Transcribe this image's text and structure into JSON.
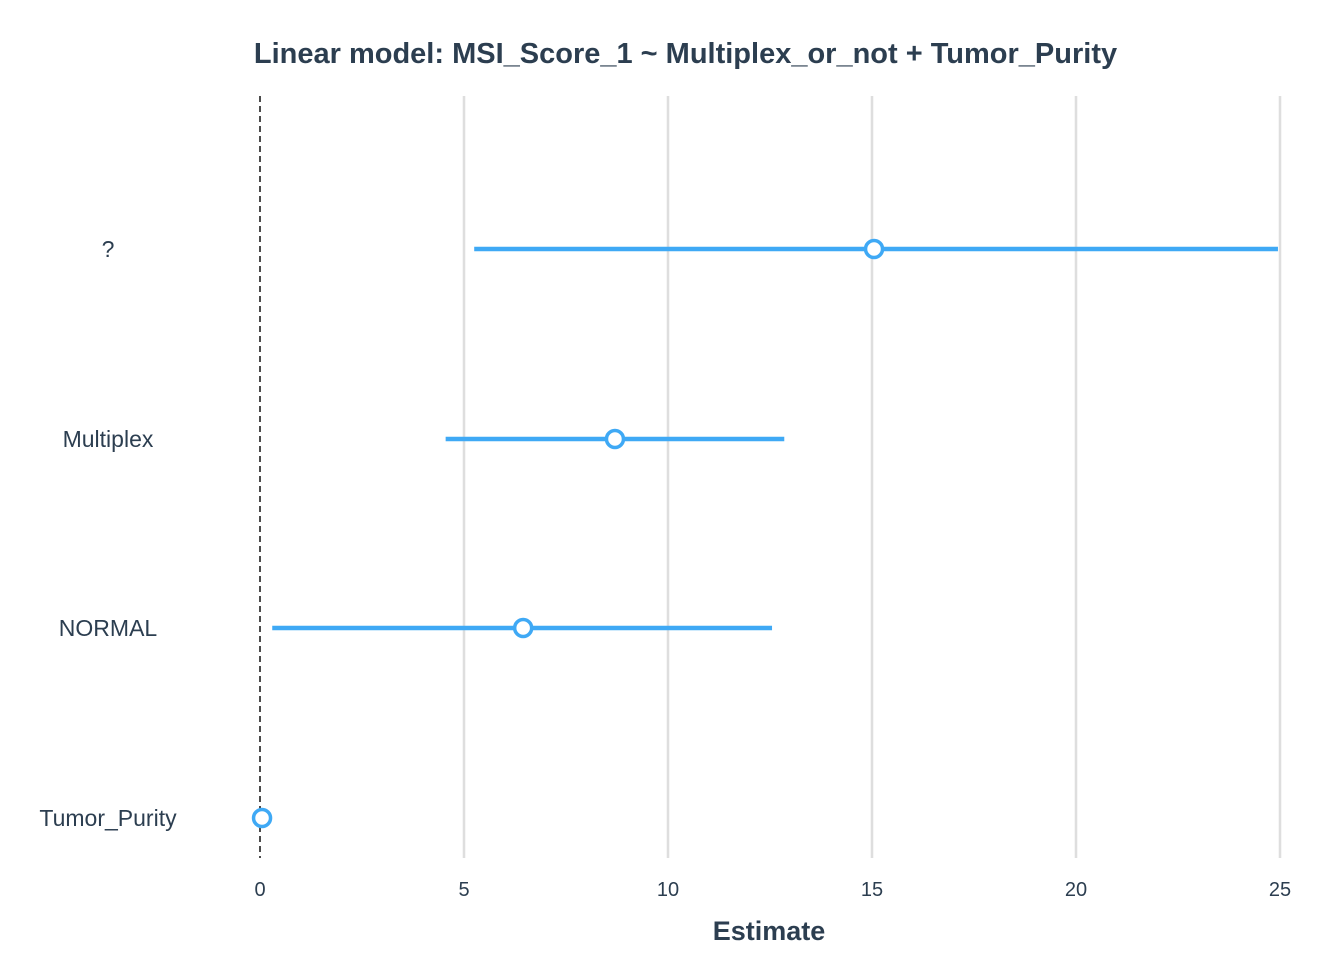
{
  "chart_data": {
    "type": "forest",
    "title": "Linear model: MSI_Score_1 ~ Multiplex_or_not + Tumor_Purity",
    "xlabel": "Estimate",
    "ylabel": "",
    "xlim": [
      0,
      25
    ],
    "xticks": [
      0,
      5,
      10,
      15,
      20,
      25
    ],
    "reference_line": 0,
    "grid": "vertical",
    "color": "#3fa9f5",
    "terms": [
      {
        "label": "?",
        "estimate": 15.05,
        "lower": 5.25,
        "upper": 24.95
      },
      {
        "label": "Multiplex",
        "estimate": 8.7,
        "lower": 4.55,
        "upper": 12.85
      },
      {
        "label": "NORMAL",
        "estimate": 6.45,
        "lower": 0.3,
        "upper": 12.55
      },
      {
        "label": "Tumor_Purity",
        "estimate": 0.05,
        "lower": 0.0,
        "upper": 0.0
      }
    ]
  }
}
